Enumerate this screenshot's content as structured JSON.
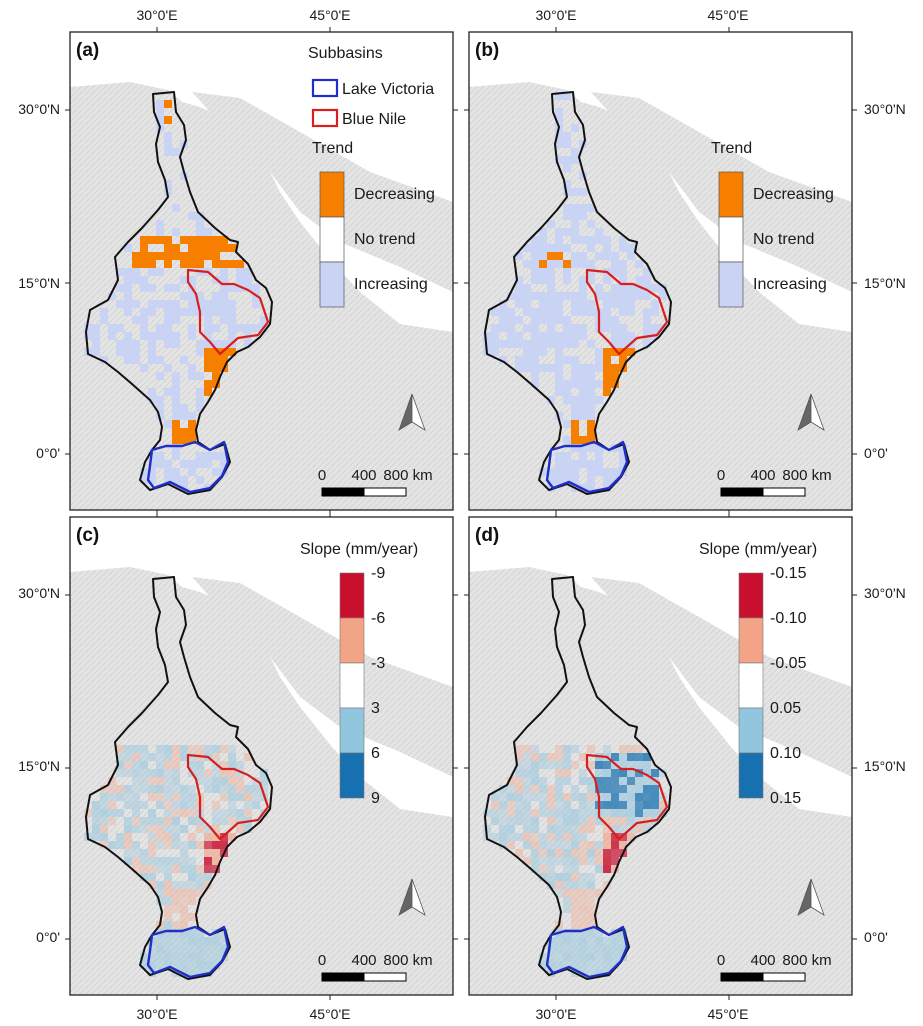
{
  "axes": {
    "lon_labels": [
      "30°0'E",
      "45°0'E"
    ],
    "lat_labels": [
      "30°0'N",
      "15°0'N",
      "0°0'"
    ]
  },
  "panels": [
    {
      "letter": "(a)"
    },
    {
      "letter": "(b)"
    },
    {
      "letter": "(c)"
    },
    {
      "letter": "(d)"
    }
  ],
  "subbasin_legend": {
    "title": "Subbasins",
    "items": [
      {
        "label": "Lake Victoria",
        "color": "#1f2fc8"
      },
      {
        "label": "Blue Nile",
        "color": "#d81e1e"
      }
    ]
  },
  "trend_legend": {
    "title": "Trend",
    "items": [
      {
        "label": "Decreasing",
        "color": "#f77f00"
      },
      {
        "label": "No trend",
        "color": "#ffffff"
      },
      {
        "label": "Increasing",
        "color": "#c9d3f3"
      }
    ]
  },
  "slope_legend_c": {
    "title": "Slope (mm/year)",
    "labels": [
      "-9",
      "-6",
      "-3",
      "3",
      "6",
      "9"
    ],
    "colors": [
      "#c8102e",
      "#f3a487",
      "#ffffff",
      "#92c5de",
      "#1771b0"
    ]
  },
  "slope_legend_d": {
    "title": "Slope (mm/year)",
    "labels": [
      "-0.15",
      "-0.10",
      "-0.05",
      "0.05",
      "0.10",
      "0.15"
    ],
    "colors": [
      "#c8102e",
      "#f3a487",
      "#ffffff",
      "#92c5de",
      "#1771b0"
    ]
  },
  "scale_bar": {
    "labels": [
      "0",
      "400",
      "800 km"
    ]
  },
  "colors": {
    "nile_boundary": "#111111",
    "terrain": "#e3e3e3",
    "blue_nile": "#d81e1e",
    "lake_victoria": "#1f2fc8"
  }
}
